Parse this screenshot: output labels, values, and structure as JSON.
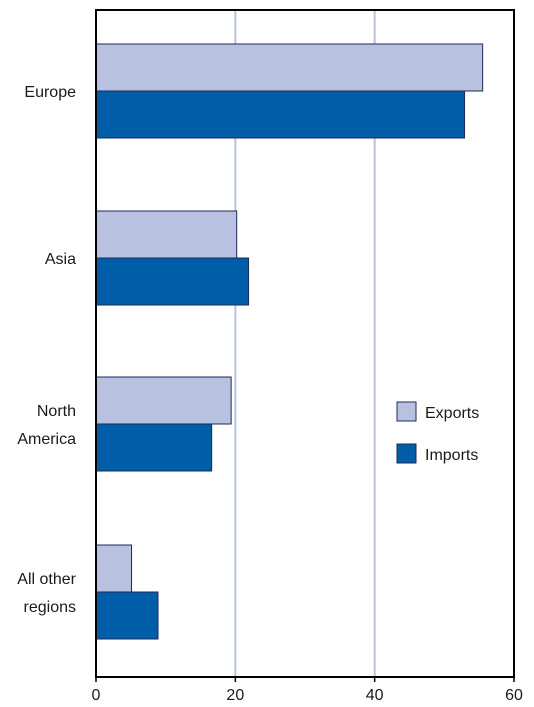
{
  "chart_data": {
    "type": "bar",
    "orientation": "horizontal",
    "categories": [
      [
        "Europe"
      ],
      [
        "Asia"
      ],
      [
        "North",
        "America"
      ],
      [
        "All other",
        "regions"
      ]
    ],
    "series": [
      {
        "name": "Exports",
        "values": [
          55.5,
          20.2,
          19.4,
          5.1
        ],
        "color": "#b9c1e1"
      },
      {
        "name": "Imports",
        "values": [
          52.9,
          21.9,
          16.6,
          8.9
        ],
        "color": "#005ea8"
      }
    ],
    "xlim": [
      0,
      60
    ],
    "x_ticks": [
      "0",
      "20",
      "40",
      "60"
    ],
    "gridlines": [
      20,
      40
    ],
    "grid_color": "#b9c1e1",
    "legend_position": "right",
    "title": "",
    "xlabel": "",
    "ylabel": ""
  }
}
